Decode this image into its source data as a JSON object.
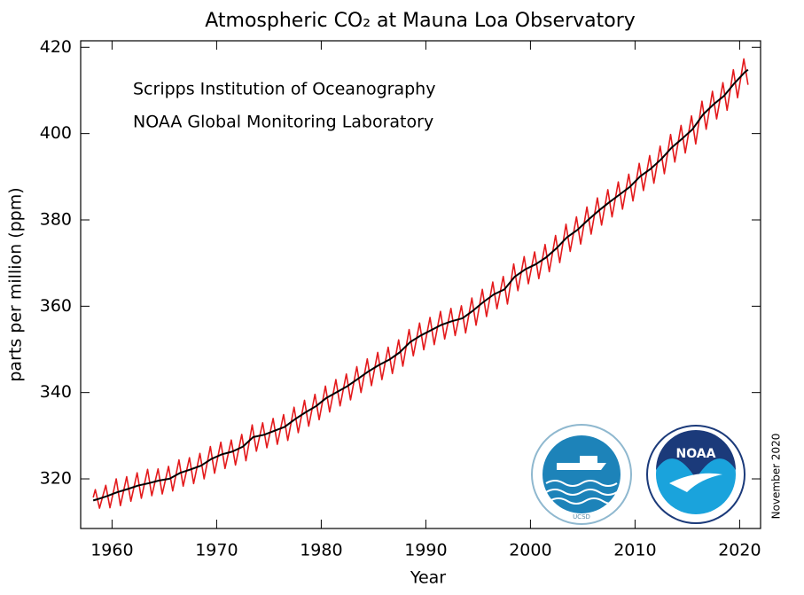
{
  "chart_data": {
    "type": "line",
    "title": "Atmospheric CO₂ at Mauna Loa Observatory",
    "xlabel": "Year",
    "ylabel": "parts per million (ppm)",
    "annotations": [
      "Scripps Institution of Oceanography",
      "NOAA Global Monitoring Laboratory",
      "November 2020"
    ],
    "logo_texts": [
      "UCSD",
      "NOAA"
    ],
    "xlim": [
      1957,
      2022
    ],
    "ylim": [
      308.5,
      421.5
    ],
    "xticks": [
      1960,
      1970,
      1980,
      1990,
      2000,
      2010,
      2020
    ],
    "yticks": [
      320,
      340,
      360,
      380,
      400,
      420
    ],
    "grid": false,
    "series": [
      {
        "color": "#e41a1c",
        "x": [
          1958.2,
          1958.4,
          1958.8,
          1959.4,
          1959.8,
          1960.4,
          1960.8,
          1961.4,
          1961.8,
          1962.4,
          1962.8,
          1963.4,
          1963.8,
          1964.4,
          1964.8,
          1965.4,
          1965.8,
          1966.4,
          1966.8,
          1967.4,
          1967.8,
          1968.4,
          1968.8,
          1969.4,
          1969.8,
          1970.4,
          1970.8,
          1971.4,
          1971.8,
          1972.4,
          1972.8,
          1973.4,
          1973.8,
          1974.4,
          1974.8,
          1975.4,
          1975.8,
          1976.4,
          1976.8,
          1977.4,
          1977.8,
          1978.4,
          1978.8,
          1979.4,
          1979.8,
          1980.4,
          1980.8,
          1981.4,
          1981.8,
          1982.4,
          1982.8,
          1983.4,
          1983.8,
          1984.4,
          1984.8,
          1985.4,
          1985.8,
          1986.4,
          1986.8,
          1987.4,
          1987.8,
          1988.4,
          1988.8,
          1989.4,
          1989.8,
          1990.4,
          1990.8,
          1991.4,
          1991.8,
          1992.4,
          1992.8,
          1993.4,
          1993.8,
          1994.4,
          1994.8,
          1995.4,
          1995.8,
          1996.4,
          1996.8,
          1997.4,
          1997.8,
          1998.4,
          1998.8,
          1999.4,
          1999.8,
          2000.4,
          2000.8,
          2001.4,
          2001.8,
          2002.4,
          2002.8,
          2003.4,
          2003.8,
          2004.4,
          2004.8,
          2005.4,
          2005.8,
          2006.4,
          2006.8,
          2007.4,
          2007.8,
          2008.4,
          2008.8,
          2009.4,
          2009.8,
          2010.4,
          2010.8,
          2011.4,
          2011.8,
          2012.4,
          2012.8,
          2013.4,
          2013.8,
          2014.4,
          2014.8,
          2015.4,
          2015.8,
          2016.4,
          2016.8,
          2017.4,
          2017.8,
          2018.4,
          2018.8,
          2019.4,
          2019.8,
          2020.4,
          2020.8
        ],
        "values": [
          315.7,
          317.5,
          313.2,
          318.5,
          313.3,
          320.0,
          313.8,
          320.5,
          314.8,
          321.4,
          315.5,
          322.2,
          316.1,
          322.3,
          316.5,
          322.9,
          317.2,
          324.4,
          318.3,
          324.9,
          318.9,
          325.9,
          320.0,
          327.5,
          321.3,
          328.5,
          322.4,
          329.0,
          323.2,
          330.3,
          324.2,
          332.5,
          326.4,
          333.0,
          327.2,
          334.0,
          328.0,
          334.9,
          328.9,
          336.6,
          330.7,
          338.2,
          332.2,
          339.6,
          333.7,
          341.5,
          335.5,
          343.0,
          336.9,
          344.3,
          338.3,
          346.0,
          340.0,
          347.8,
          341.6,
          349.3,
          343.0,
          350.5,
          344.4,
          352.2,
          346.1,
          354.6,
          348.5,
          356.1,
          349.9,
          357.4,
          351.1,
          358.8,
          352.4,
          359.5,
          353.2,
          360.1,
          353.8,
          361.9,
          355.6,
          363.9,
          357.6,
          365.6,
          359.4,
          366.9,
          360.5,
          369.8,
          363.6,
          371.5,
          365.2,
          372.6,
          366.4,
          374.3,
          368.0,
          376.4,
          370.1,
          379.0,
          372.7,
          380.7,
          374.4,
          383.0,
          376.7,
          385.1,
          378.8,
          387.0,
          380.7,
          388.8,
          382.5,
          390.6,
          384.4,
          393.1,
          386.8,
          394.9,
          388.5,
          397.1,
          390.7,
          399.8,
          393.4,
          401.9,
          395.5,
          404.1,
          397.6,
          407.5,
          401.0,
          409.8,
          403.4,
          411.8,
          405.4,
          414.8,
          408.3,
          417.3,
          411.3
        ]
      },
      {
        "color": "#000000",
        "x": [
          1958.2,
          1958.5,
          1959.5,
          1960.5,
          1961.5,
          1962.5,
          1963.5,
          1964.5,
          1965.5,
          1966.5,
          1967.5,
          1968.5,
          1969.5,
          1970.5,
          1971.5,
          1972.5,
          1973.5,
          1974.5,
          1975.5,
          1976.5,
          1977.5,
          1978.5,
          1979.5,
          1980.5,
          1981.5,
          1982.5,
          1983.5,
          1984.5,
          1985.5,
          1986.5,
          1987.5,
          1988.5,
          1989.5,
          1990.5,
          1991.5,
          1992.5,
          1993.5,
          1994.5,
          1995.5,
          1996.5,
          1997.5,
          1998.5,
          1999.5,
          2000.5,
          2001.5,
          2002.5,
          2003.5,
          2004.5,
          2005.5,
          2006.5,
          2007.5,
          2008.5,
          2009.5,
          2010.5,
          2011.5,
          2012.5,
          2013.5,
          2014.5,
          2015.5,
          2016.5,
          2017.5,
          2018.5,
          2019.5,
          2020.5,
          2020.8
        ],
        "values": [
          315.0,
          315.2,
          315.98,
          316.91,
          317.64,
          318.45,
          318.99,
          319.62,
          320.04,
          321.37,
          322.18,
          323.05,
          324.62,
          325.68,
          326.32,
          327.46,
          329.68,
          330.19,
          331.12,
          332.03,
          333.84,
          335.41,
          336.84,
          338.76,
          340.12,
          341.48,
          343.15,
          344.87,
          346.35,
          347.61,
          349.31,
          351.69,
          353.2,
          354.45,
          355.7,
          356.54,
          357.21,
          358.96,
          360.97,
          362.74,
          363.88,
          366.84,
          368.54,
          369.71,
          371.32,
          373.45,
          375.98,
          377.7,
          379.98,
          382.09,
          384.02,
          385.83,
          387.64,
          390.1,
          391.85,
          394.06,
          396.74,
          398.81,
          401.01,
          404.41,
          406.76,
          408.72,
          411.66,
          414.24,
          414.8
        ]
      }
    ]
  }
}
